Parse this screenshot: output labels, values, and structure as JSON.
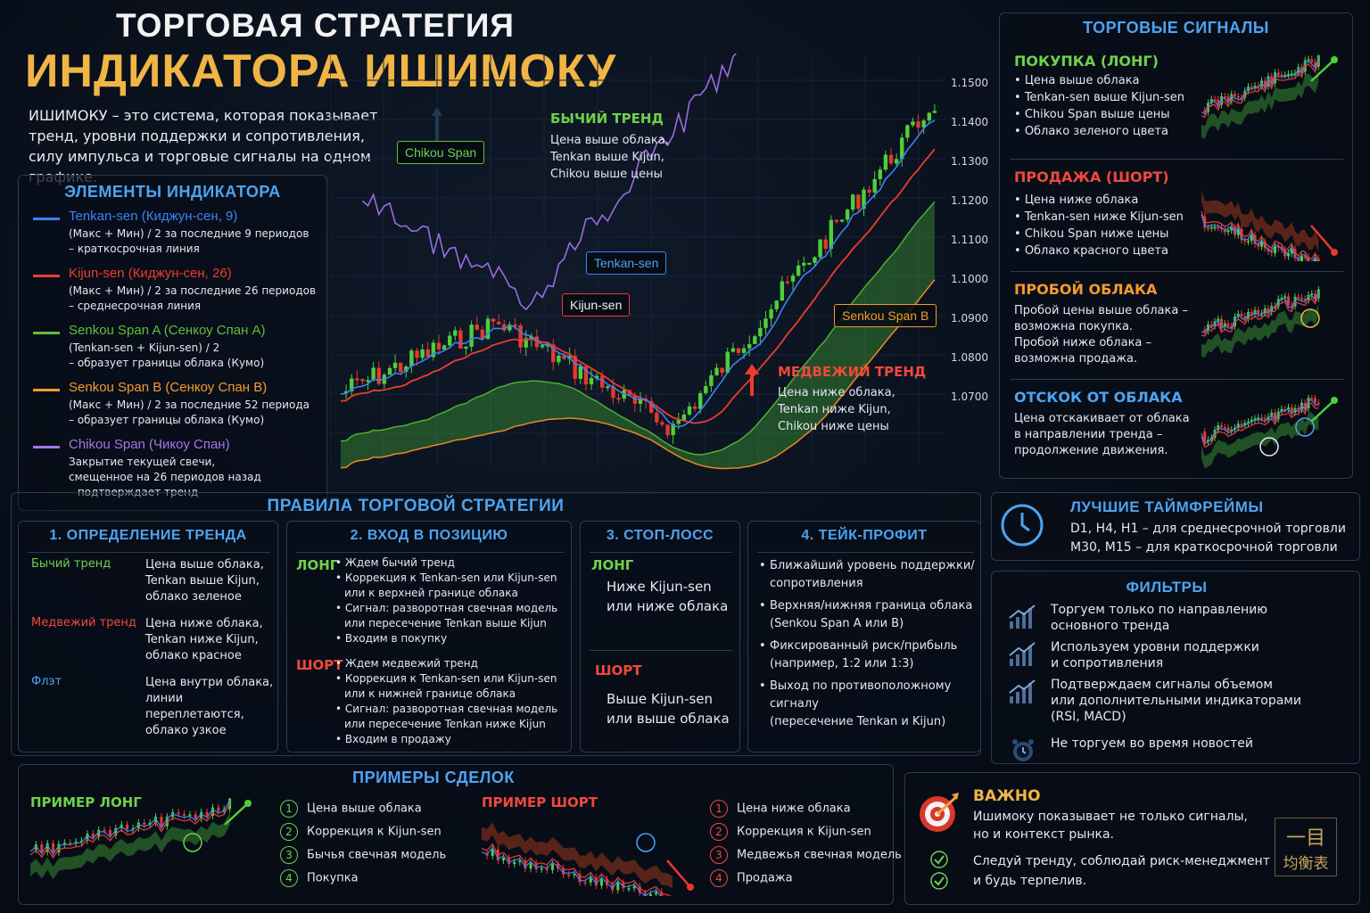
{
  "header": {
    "title_line1": "ТОРГОВАЯ СТРАТЕГИЯ",
    "title_line2": "ИНДИКАТОРА ИШИМОКУ",
    "intro": "ИШИМОКУ – это система, которая показывает тренд, уровни поддержки и сопротивления, силу импульса и торговые сигналы на одном графике."
  },
  "elements": {
    "title": "ЭЛЕМЕНТЫ ИНДИКАТОРА",
    "items": [
      {
        "name": "Tenkan-sen (Киджун-сен, 9)",
        "desc1": "(Макс + Мин) / 2 за последние 9 периодов",
        "desc2": "– краткосрочная линия",
        "color": "#3b82f6"
      },
      {
        "name": "Kijun-sen (Киджун-сен, 26)",
        "desc1": "(Макс + Мин) / 2 за последние 26 периодов",
        "desc2": "– среднесрочная линия",
        "color": "#ef3b2f"
      },
      {
        "name": "Senkou Span A (Сенкоу Спан A)",
        "desc1": "(Tenkan-sen + Kijun-sen) / 2",
        "desc2": "– образует границы облака (Кумо)",
        "color": "#5fbf3a"
      },
      {
        "name": "Senkou Span B (Сенкоу Спан B)",
        "desc1": "(Макс + Мин) / 2 за последние 52 периода",
        "desc2": "– образует границы облака (Кумо)",
        "color": "#f29a2e"
      },
      {
        "name": "Chikou Span (Чикоу Спан)",
        "desc1": "Закрытие текущей свечи,",
        "desc2": "смещенное на 26 периодов назад",
        "desc3": "– подтверждает тренд",
        "color": "#a873e8"
      }
    ]
  },
  "main_chart": {
    "labels": {
      "chikou": "Chikou Span",
      "tenkan": "Tenkan-sen",
      "kijun": "Kijun-sen",
      "senkou_b": "Senkou Span B",
      "bull_title": "БЫЧИЙ ТРЕНД",
      "bull_text": [
        "Цена выше облака,",
        "Tenkan выше Kijun,",
        "Chikou выше цены"
      ],
      "bear_title": "МЕДВЕЖИЙ ТРЕНД",
      "bear_text": [
        "Цена ниже облака,",
        "Tenkan ниже Kijun,",
        "Chikou ниже цены"
      ]
    },
    "y_ticks": [
      "1.1500",
      "1.1400",
      "1.1300",
      "1.1200",
      "1.1100",
      "1.1000",
      "1.0900",
      "1.0800",
      "1.0700"
    ]
  },
  "signals": {
    "title": "ТОРГОВЫЕ СИГНАЛЫ",
    "buy": {
      "title": "ПОКУПКА (ЛОНГ)",
      "items": [
        "Цена выше облака",
        "Tenkan-sen выше Kijun-sen",
        "Chikou Span выше цены",
        "Облако зеленого цвета"
      ]
    },
    "sell": {
      "title": "ПРОДАЖА (ШОРТ)",
      "items": [
        "Цена ниже облака",
        "Tenkan-sen ниже Kijun-sen",
        "Chikou Span ниже цены",
        "Облако красного цвета"
      ]
    },
    "breakout": {
      "title": "ПРОБОЙ ОБЛАКА",
      "lines": [
        "Пробой цены выше облака –",
        "возможна покупка.",
        "Пробой ниже облака –",
        "возможна продажа."
      ]
    },
    "bounce": {
      "title": "ОТСКОК ОТ ОБЛАКА",
      "lines": [
        "Цена отскакивает от облака",
        "в направлении тренда –",
        "продолжение движения."
      ]
    }
  },
  "rules": {
    "title": "ПРАВИЛА ТОРГОВОЙ СТРАТЕГИИ",
    "trend": {
      "title": "1. ОПРЕДЕЛЕНИЕ ТРЕНДА",
      "rows": [
        {
          "label": "Бычий тренд",
          "lines": [
            "Цена выше облака,",
            "Tenkan выше Kijun,",
            "облако зеленое"
          ]
        },
        {
          "label": "Медвежий тренд",
          "lines": [
            "Цена ниже облака,",
            "Tenkan ниже Kijun,",
            "облако красное"
          ]
        },
        {
          "label": "Флэт",
          "lines": [
            "Цена внутри облака,",
            "линии переплетаются,",
            "облако узкое"
          ]
        }
      ]
    },
    "entry": {
      "title": "2. ВХОД В ПОЗИЦИЮ",
      "long_label": "ЛОНГ",
      "long_items": [
        "Ждем бычий тренд",
        "Коррекция к Tenkan-sen или Kijun-sen",
        "или к верхней границе облака",
        "Сигнал: разворотная свечная модель",
        "или пересечение Tenkan выше Kijun",
        "Входим в покупку"
      ],
      "short_label": "ШОРТ",
      "short_items": [
        "Ждем медвежий тренд",
        "Коррекция к Tenkan-sen или Kijun-sen",
        "или к нижней границе облака",
        "Сигнал: разворотная свечная модель",
        "или пересечение Tenkan ниже Kijun",
        "Входим в продажу"
      ]
    },
    "stop": {
      "title": "3. СТОП-ЛОСС",
      "long_label": "ЛОНГ",
      "long_lines": [
        "Ниже Kijun-sen",
        "или ниже облака"
      ],
      "short_label": "ШОРТ",
      "short_lines": [
        "Выше Kijun-sen",
        "или выше облака"
      ]
    },
    "take": {
      "title": "4. ТЕЙК-ПРОФИТ",
      "items": [
        [
          "Ближайший уровень поддержки/",
          "сопротивления"
        ],
        [
          "Верхняя/нижняя граница облака",
          "(Senkou Span A или B)"
        ],
        [
          "Фиксированный риск/прибыль",
          "(например, 1:2 или 1:3)"
        ],
        [
          "Выход по противоположному сигналу",
          "(пересечение Tenkan и Kijun)"
        ]
      ]
    }
  },
  "timeframes": {
    "title": "ЛУЧШИЕ ТАЙМФРЕЙМЫ",
    "line1": "D1, H4, H1 – для среднесрочной торговли",
    "line2": "M30, M15 – для краткосрочной торговли"
  },
  "filters": {
    "title": "ФИЛЬТРЫ",
    "items": [
      [
        "Торгуем только по направлению",
        "основного тренда"
      ],
      [
        "Используем уровни поддержки",
        "и сопротивления"
      ],
      [
        "Подтверждаем сигналы объемом",
        "или дополнительными индикаторами",
        "(RSI, MACD)"
      ],
      [
        "Не торгуем во время новостей"
      ]
    ]
  },
  "examples": {
    "title": "ПРИМЕРЫ СДЕЛОК",
    "long": {
      "title": "ПРИМЕР ЛОНГ",
      "items": [
        "Цена выше облака",
        "Коррекция к Kijun-sen",
        "Бычья свечная модель",
        "Покупка"
      ]
    },
    "short": {
      "title": "ПРИМЕР ШОРТ",
      "items": [
        "Цена ниже облака",
        "Коррекция к Kijun-sen",
        "Медвежья свечная модель",
        "Продажа"
      ]
    },
    "nums": [
      "1",
      "2",
      "3",
      "4"
    ]
  },
  "important": {
    "title": "ВАЖНО",
    "line1": "Ишимоку показывает не только сигналы,",
    "line2": "но и контекст рынка.",
    "line3": "Следуй тренду, соблюдай риск-менеджмент",
    "line4": "и будь терпелив.",
    "kanji1": "一目",
    "kanji2": "均衡表"
  }
}
